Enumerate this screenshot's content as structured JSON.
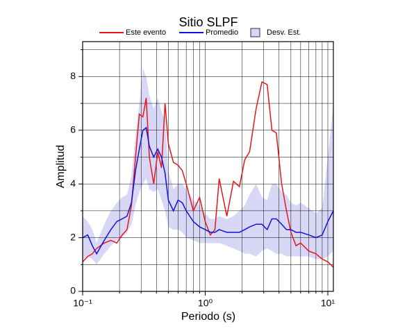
{
  "chart_data": {
    "type": "line",
    "title": "Sitio SLPF",
    "xlabel": "Periodo (s)",
    "ylabel": "Amplitud",
    "xscale": "log",
    "xlim": [
      0.1,
      11.1
    ],
    "ylim": [
      0,
      9.3
    ],
    "xticks": [
      {
        "value": 0.1,
        "label": "10⁻¹"
      },
      {
        "value": 1,
        "label": "10⁰"
      },
      {
        "value": 10,
        "label": "10¹"
      }
    ],
    "minor_xticks": [
      0.2,
      0.3,
      0.4,
      0.5,
      0.6,
      0.7,
      0.8,
      0.9,
      2,
      3,
      4,
      5,
      6,
      7,
      8,
      9
    ],
    "yticks": [
      0,
      2,
      4,
      6,
      8
    ],
    "minor_yticks": [
      1,
      3,
      5,
      7,
      9
    ],
    "grid": true,
    "x": [
      0.1,
      0.11,
      0.12,
      0.13,
      0.15,
      0.17,
      0.19,
      0.21,
      0.23,
      0.25,
      0.27,
      0.29,
      0.31,
      0.33,
      0.35,
      0.38,
      0.41,
      0.44,
      0.47,
      0.5,
      0.55,
      0.6,
      0.65,
      0.7,
      0.8,
      0.9,
      1.0,
      1.1,
      1.2,
      1.3,
      1.5,
      1.7,
      1.9,
      2.1,
      2.3,
      2.6,
      2.9,
      3.2,
      3.5,
      3.8,
      4.2,
      4.6,
      5,
      5.5,
      6,
      7,
      8,
      9,
      10,
      11.1
    ],
    "band": {
      "name": "Desv. Est.",
      "color": "#d8d8f6",
      "lower": [
        1.2,
        1.3,
        1.2,
        1.0,
        1.4,
        1.7,
        1.9,
        2.0,
        2.2,
        2.5,
        3.2,
        3.7,
        4.0,
        4.2,
        3.8,
        3.7,
        3.8,
        3.4,
        3.0,
        2.4,
        2.3,
        2.3,
        2.2,
        2.0,
        1.9,
        1.8,
        1.8,
        1.8,
        1.8,
        1.8,
        1.7,
        1.6,
        1.5,
        1.4,
        1.4,
        1.3,
        1.5,
        1.6,
        1.5,
        1.4,
        1.4,
        1.3,
        1.3,
        1.3,
        1.3,
        1.3,
        1.2,
        1.2,
        1.3,
        1.5
      ],
      "upper": [
        2.8,
        2.6,
        2.3,
        1.8,
        2.5,
        3.0,
        3.3,
        3.5,
        3.6,
        4.3,
        5.8,
        7.0,
        8.3,
        8.0,
        7.3,
        6.8,
        7.2,
        6.7,
        6.4,
        4.5,
        3.8,
        4.0,
        4.0,
        3.8,
        3.4,
        3.2,
        2.9,
        2.7,
        2.7,
        2.8,
        2.7,
        2.8,
        3.0,
        3.2,
        3.6,
        4.0,
        3.5,
        3.4,
        4.0,
        4.0,
        3.7,
        3.6,
        3.3,
        3.2,
        3.3,
        3.1,
        2.9,
        3.1,
        5.0,
        7.0
      ]
    },
    "series": [
      {
        "name": "Este evento",
        "color": "#e8141b",
        "values": [
          1.1,
          1.3,
          1.4,
          1.6,
          1.8,
          1.9,
          1.8,
          2.1,
          2.3,
          3.2,
          5.0,
          6.6,
          6.5,
          7.2,
          5.0,
          4.0,
          5.2,
          4.6,
          7.0,
          5.5,
          4.8,
          4.7,
          4.5,
          4.0,
          3.0,
          3.5,
          2.6,
          2.1,
          2.3,
          4.2,
          2.8,
          4.1,
          3.9,
          4.9,
          5.2,
          6.8,
          7.8,
          7.7,
          6.0,
          5.9,
          4.0,
          3.0,
          2.2,
          1.7,
          1.8,
          1.5,
          1.4,
          1.2,
          1.1,
          0.9
        ]
      },
      {
        "name": "Promedio",
        "color": "#1010e0",
        "values": [
          2.0,
          2.1,
          1.7,
          1.4,
          1.9,
          2.3,
          2.6,
          2.7,
          2.8,
          3.3,
          4.5,
          5.3,
          6.0,
          6.1,
          5.4,
          5.0,
          5.3,
          5.0,
          4.4,
          3.4,
          3.0,
          3.4,
          3.3,
          3.0,
          2.6,
          2.4,
          2.3,
          2.2,
          2.2,
          2.3,
          2.2,
          2.2,
          2.2,
          2.3,
          2.4,
          2.5,
          2.5,
          2.3,
          2.7,
          2.7,
          2.5,
          2.3,
          2.3,
          2.2,
          2.2,
          2.1,
          2.0,
          2.1,
          2.6,
          3.0
        ]
      }
    ]
  }
}
